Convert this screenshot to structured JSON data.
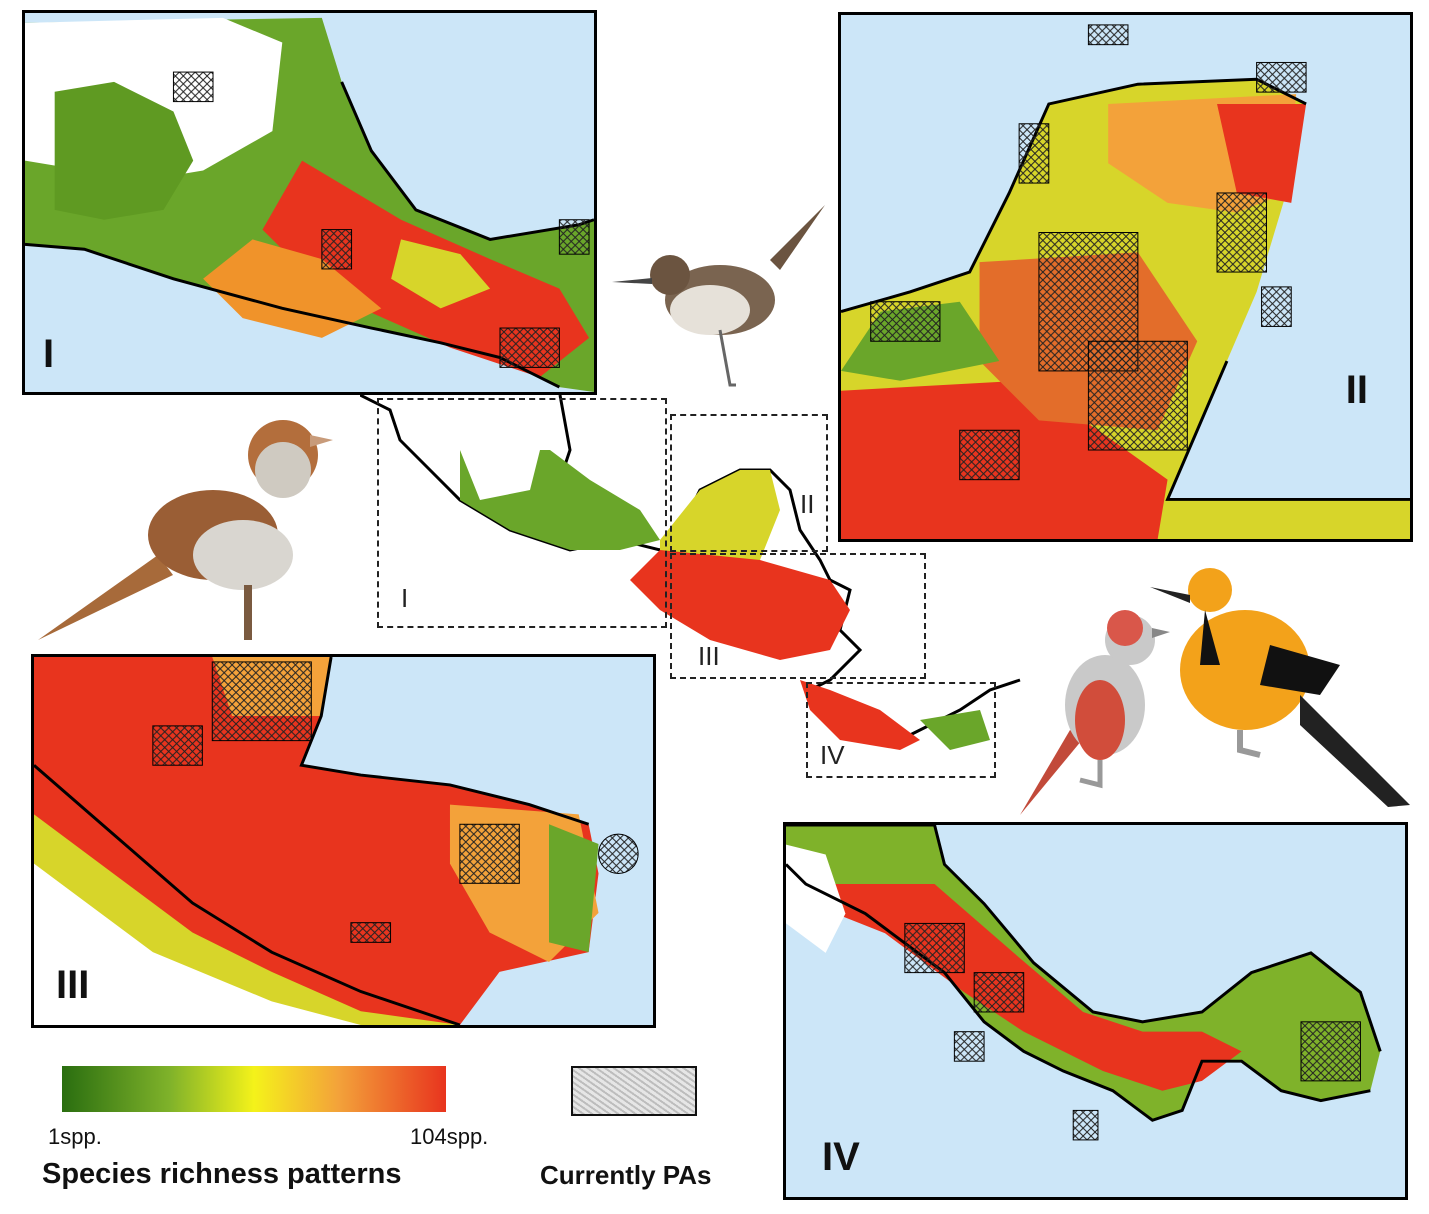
{
  "panels": [
    {
      "id": "I",
      "label": "I"
    },
    {
      "id": "II",
      "label": "II"
    },
    {
      "id": "III",
      "label": "III"
    },
    {
      "id": "IV",
      "label": "IV"
    }
  ],
  "overview": {
    "box_labels": [
      "I",
      "II",
      "III",
      "IV"
    ]
  },
  "legend": {
    "ramp_min": "1spp.",
    "ramp_max": "104spp.",
    "ramp_title": "Species richness patterns",
    "pa_title": "Currently PAs",
    "colors": {
      "low": "#2a6e10",
      "mid_low": "#7fb22a",
      "mid": "#f4f21a",
      "mid_high": "#f3a23a",
      "high": "#e8341e",
      "ocean": "#cce6f8"
    }
  },
  "birds": [
    "wren-illustration",
    "sparrow-illustration",
    "tanager-illustration",
    "oriole-illustration"
  ]
}
